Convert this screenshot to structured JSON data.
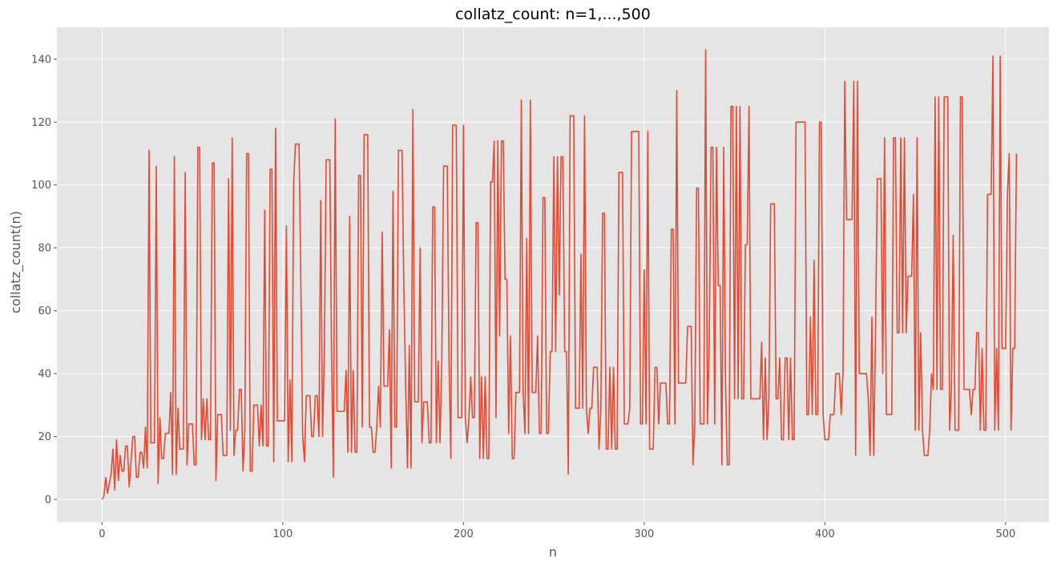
{
  "chart_data": {
    "type": "line",
    "title": "collatz_count: n=1,...,500",
    "xlabel": "n",
    "ylabel": "collatz_count(n)",
    "xlim": [
      -25,
      524
    ],
    "ylim": [
      -7.15,
      150.15
    ],
    "xticks": [
      0,
      100,
      200,
      300,
      400,
      500
    ],
    "yticks": [
      0,
      20,
      40,
      60,
      80,
      100,
      120,
      140
    ],
    "grid": true,
    "style": "ggplot",
    "series": [
      {
        "color": "#E24A33",
        "x_start": 0,
        "values": [
          0,
          1,
          7,
          2,
          5,
          8,
          16,
          3,
          19,
          6,
          14,
          9,
          9,
          17,
          17,
          4,
          12,
          20,
          20,
          7,
          7,
          15,
          15,
          10,
          23,
          10,
          111,
          18,
          18,
          18,
          106,
          5,
          26,
          13,
          13,
          21,
          21,
          21,
          34,
          8,
          109,
          8,
          29,
          16,
          16,
          16,
          104,
          11,
          24,
          24,
          24,
          11,
          11,
          112,
          112,
          19,
          32,
          19,
          32,
          19,
          19,
          107,
          107,
          6,
          27,
          27,
          27,
          14,
          14,
          14,
          102,
          22,
          115,
          14,
          22,
          22,
          35,
          35,
          9,
          22,
          110,
          110,
          9,
          9,
          30,
          30,
          30,
          17,
          30,
          17,
          92,
          17,
          17,
          105,
          105,
          12,
          118,
          25,
          25,
          25,
          25,
          25,
          87,
          12,
          38,
          12,
          100,
          113,
          113,
          113,
          69,
          20,
          12,
          33,
          33,
          33,
          20,
          20,
          33,
          33,
          20,
          95,
          20,
          46,
          108,
          108,
          108,
          46,
          7,
          121,
          28,
          28,
          28,
          28,
          28,
          41,
          15,
          90,
          15,
          41,
          15,
          15,
          103,
          103,
          23,
          116,
          116,
          116,
          23,
          23,
          15,
          15,
          23,
          36,
          23,
          85,
          36,
          36,
          36,
          54,
          10,
          98,
          23,
          23,
          111,
          111,
          111,
          67,
          36,
          10,
          49,
          10,
          124,
          31,
          31,
          31,
          80,
          18,
          31,
          31,
          31,
          18,
          18,
          93,
          93,
          18,
          44,
          18,
          44,
          106,
          106,
          106,
          44,
          13,
          119,
          119,
          119,
          26,
          26,
          26,
          119,
          26,
          18,
          26,
          39,
          26,
          26,
          88,
          88,
          13,
          39,
          13,
          39,
          13,
          13,
          101,
          101,
          114,
          26,
          114,
          52,
          114,
          114,
          70,
          70,
          21,
          52,
          13,
          13,
          34,
          34,
          34,
          127,
          34,
          21,
          83,
          21,
          127,
          34,
          34,
          34,
          52,
          21,
          21,
          96,
          96,
          21,
          21,
          47,
          47,
          109,
          47,
          109,
          65,
          109,
          109,
          47,
          47,
          8,
          122,
          122,
          122,
          29,
          29,
          29,
          78,
          29,
          122,
          29,
          21,
          29,
          29,
          42,
          42,
          42,
          16,
          29,
          91,
          91,
          16,
          16,
          42,
          16,
          42,
          16,
          16,
          104,
          104,
          104,
          24,
          24,
          24,
          29,
          117,
          117,
          117,
          117,
          117,
          24,
          24,
          73,
          24,
          117,
          16,
          16,
          16,
          42,
          42,
          24,
          37,
          37,
          37,
          37,
          24,
          24,
          86,
          86,
          24,
          130,
          37,
          37,
          37,
          37,
          37,
          55,
          55,
          55,
          11,
          24,
          99,
          99,
          24,
          24,
          24,
          143,
          24,
          50,
          112,
          112,
          24,
          112,
          68,
          68,
          11,
          112,
          37,
          11,
          11,
          125,
          125,
          32,
          125,
          32,
          125,
          32,
          32,
          81,
          81,
          125,
          32,
          32,
          32,
          32,
          32,
          32,
          50,
          19,
          45,
          19,
          32,
          94,
          94,
          94,
          32,
          32,
          45,
          19,
          19,
          45,
          45,
          19,
          45,
          19,
          19,
          120,
          120,
          120,
          120,
          120,
          120,
          27,
          27,
          58,
          27,
          76,
          27,
          27,
          120,
          120,
          27,
          19,
          19,
          19,
          27,
          27,
          27,
          40,
          40,
          40,
          27,
          40,
          133,
          89,
          89,
          89,
          89,
          133,
          14,
          133,
          40,
          40,
          40,
          40,
          40,
          32,
          14,
          58,
          14,
          53,
          102,
          102,
          102,
          40,
          115,
          27,
          27,
          27,
          27,
          115,
          115,
          53,
          53,
          115,
          53,
          115,
          53,
          71,
          71,
          71,
          97,
          22,
          115,
          22,
          53,
          22,
          14,
          14,
          14,
          22,
          40,
          35,
          128,
          35,
          128,
          35,
          35,
          128,
          128,
          128,
          22,
          35,
          84,
          22,
          22,
          22,
          128,
          128,
          35,
          35,
          35,
          35,
          27,
          35,
          35,
          53,
          53,
          22,
          48,
          22,
          22,
          97,
          97,
          97,
          141,
          22,
          48,
          22,
          141,
          48,
          48,
          48,
          97,
          110,
          22,
          48,
          48,
          110
        ]
      }
    ]
  }
}
